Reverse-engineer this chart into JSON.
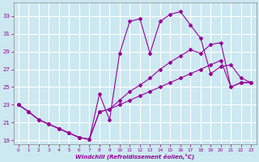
{
  "xlabel": "Windchill (Refroidissement éolien,°C)",
  "background_color": "#cce8f0",
  "grid_color": "#ffffff",
  "line_color": "#990099",
  "xlim": [
    -0.5,
    23.5
  ],
  "ylim": [
    18.5,
    34.5
  ],
  "xticks": [
    0,
    1,
    2,
    3,
    4,
    5,
    6,
    7,
    8,
    9,
    10,
    11,
    12,
    13,
    14,
    15,
    16,
    17,
    18,
    19,
    20,
    21,
    22,
    23
  ],
  "yticks": [
    19,
    21,
    23,
    25,
    27,
    29,
    31,
    33
  ],
  "line1_x": [
    0,
    1,
    2,
    3,
    4,
    5,
    6,
    7,
    8,
    9,
    10,
    11,
    12,
    13,
    14,
    15,
    16,
    17,
    18,
    19,
    20,
    21,
    22,
    23
  ],
  "line1_y": [
    23.0,
    22.2,
    21.3,
    20.8,
    20.3,
    19.8,
    19.3,
    19.1,
    24.2,
    21.3,
    28.8,
    32.4,
    32.7,
    28.8,
    32.4,
    33.2,
    33.5,
    32.0,
    30.5,
    26.5,
    27.3,
    27.5,
    26.0,
    25.5
  ],
  "line2_x": [
    0,
    1,
    2,
    3,
    4,
    5,
    6,
    7,
    8,
    9,
    10,
    11,
    12,
    13,
    14,
    15,
    16,
    17,
    18,
    19,
    20,
    21,
    22,
    23
  ],
  "line2_y": [
    23.0,
    22.2,
    21.3,
    20.8,
    20.3,
    19.8,
    19.3,
    19.1,
    22.2,
    22.5,
    23.5,
    24.5,
    25.2,
    26.0,
    27.0,
    27.8,
    28.5,
    29.2,
    28.8,
    29.8,
    30.0,
    25.0,
    25.5,
    25.5
  ],
  "line3_x": [
    0,
    1,
    2,
    3,
    4,
    5,
    6,
    7,
    8,
    9,
    10,
    11,
    12,
    13,
    14,
    15,
    16,
    17,
    18,
    19,
    20,
    21,
    22,
    23
  ],
  "line3_y": [
    23.0,
    22.2,
    21.3,
    20.8,
    20.3,
    19.8,
    19.3,
    19.1,
    22.2,
    22.5,
    23.0,
    23.5,
    24.0,
    24.5,
    25.0,
    25.5,
    26.0,
    26.5,
    27.0,
    27.5,
    28.0,
    25.0,
    25.5,
    25.5
  ]
}
